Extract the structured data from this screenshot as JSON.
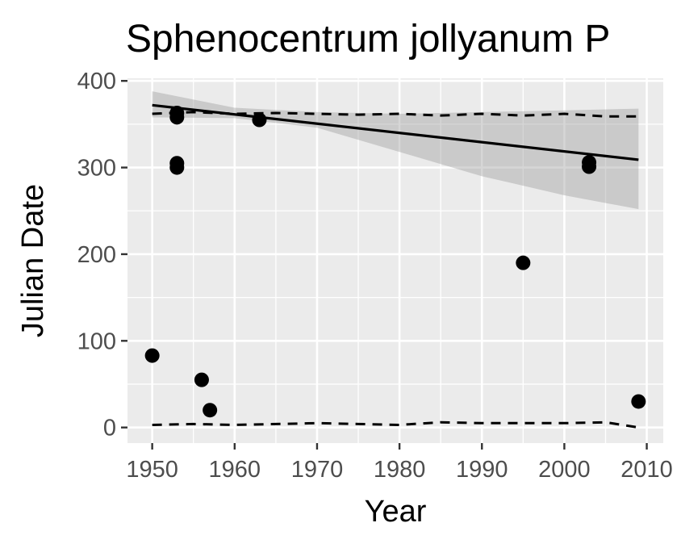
{
  "chart_data": {
    "type": "scatter",
    "title": "Sphenocentrum jollyanum P",
    "xlabel": "Year",
    "ylabel": "Julian Date",
    "xlim": [
      1947,
      2012
    ],
    "ylim": [
      -18,
      403
    ],
    "x_ticks": [
      1950,
      1960,
      1970,
      1980,
      1990,
      2000,
      2010
    ],
    "y_ticks": [
      0,
      100,
      200,
      300,
      400
    ],
    "x_tick_labels": [
      "1950",
      "1960",
      "1970",
      "1980",
      "1990",
      "2000",
      "2010"
    ],
    "y_tick_labels": [
      "0",
      "100",
      "200",
      "300",
      "400"
    ],
    "grid": true,
    "panel_background": "#ebebeb",
    "points": [
      {
        "x": 1950,
        "y": 83
      },
      {
        "x": 1953,
        "y": 363
      },
      {
        "x": 1953,
        "y": 358
      },
      {
        "x": 1953,
        "y": 305
      },
      {
        "x": 1953,
        "y": 300
      },
      {
        "x": 1956,
        "y": 55
      },
      {
        "x": 1957,
        "y": 20
      },
      {
        "x": 1963,
        "y": 355
      },
      {
        "x": 1995,
        "y": 190
      },
      {
        "x": 2003,
        "y": 306
      },
      {
        "x": 2003,
        "y": 301
      },
      {
        "x": 2009,
        "y": 30
      }
    ],
    "trend_line": {
      "x": [
        1950,
        2009
      ],
      "y": [
        372,
        309
      ]
    },
    "confidence_band": {
      "x": [
        1950,
        1960,
        1970,
        1980,
        1990,
        2000,
        2009
      ],
      "upper": [
        388,
        369,
        364,
        362,
        364,
        366,
        368
      ],
      "lower": [
        358,
        357,
        346,
        318,
        290,
        268,
        252
      ]
    },
    "quantile_lines": [
      {
        "x": [
          1950,
          1955,
          1960,
          1965,
          1970,
          1975,
          1980,
          1985,
          1990,
          1995,
          2000,
          2005,
          2009
        ],
        "y": [
          362,
          364,
          362,
          363,
          362,
          361,
          362,
          360,
          362,
          360,
          362,
          359,
          359
        ]
      },
      {
        "x": [
          1950,
          1955,
          1960,
          1965,
          1970,
          1975,
          1980,
          1985,
          1990,
          1995,
          2000,
          2005,
          2009
        ],
        "y": [
          3,
          4,
          3,
          4,
          5,
          4,
          3,
          6,
          5,
          5,
          5,
          6,
          0
        ]
      }
    ],
    "colors": {
      "points": "#000000",
      "trend": "#000000",
      "band": "#999999",
      "grid": "#ffffff",
      "tick_text": "#4d4d4d",
      "tick_mark": "#333333"
    }
  }
}
